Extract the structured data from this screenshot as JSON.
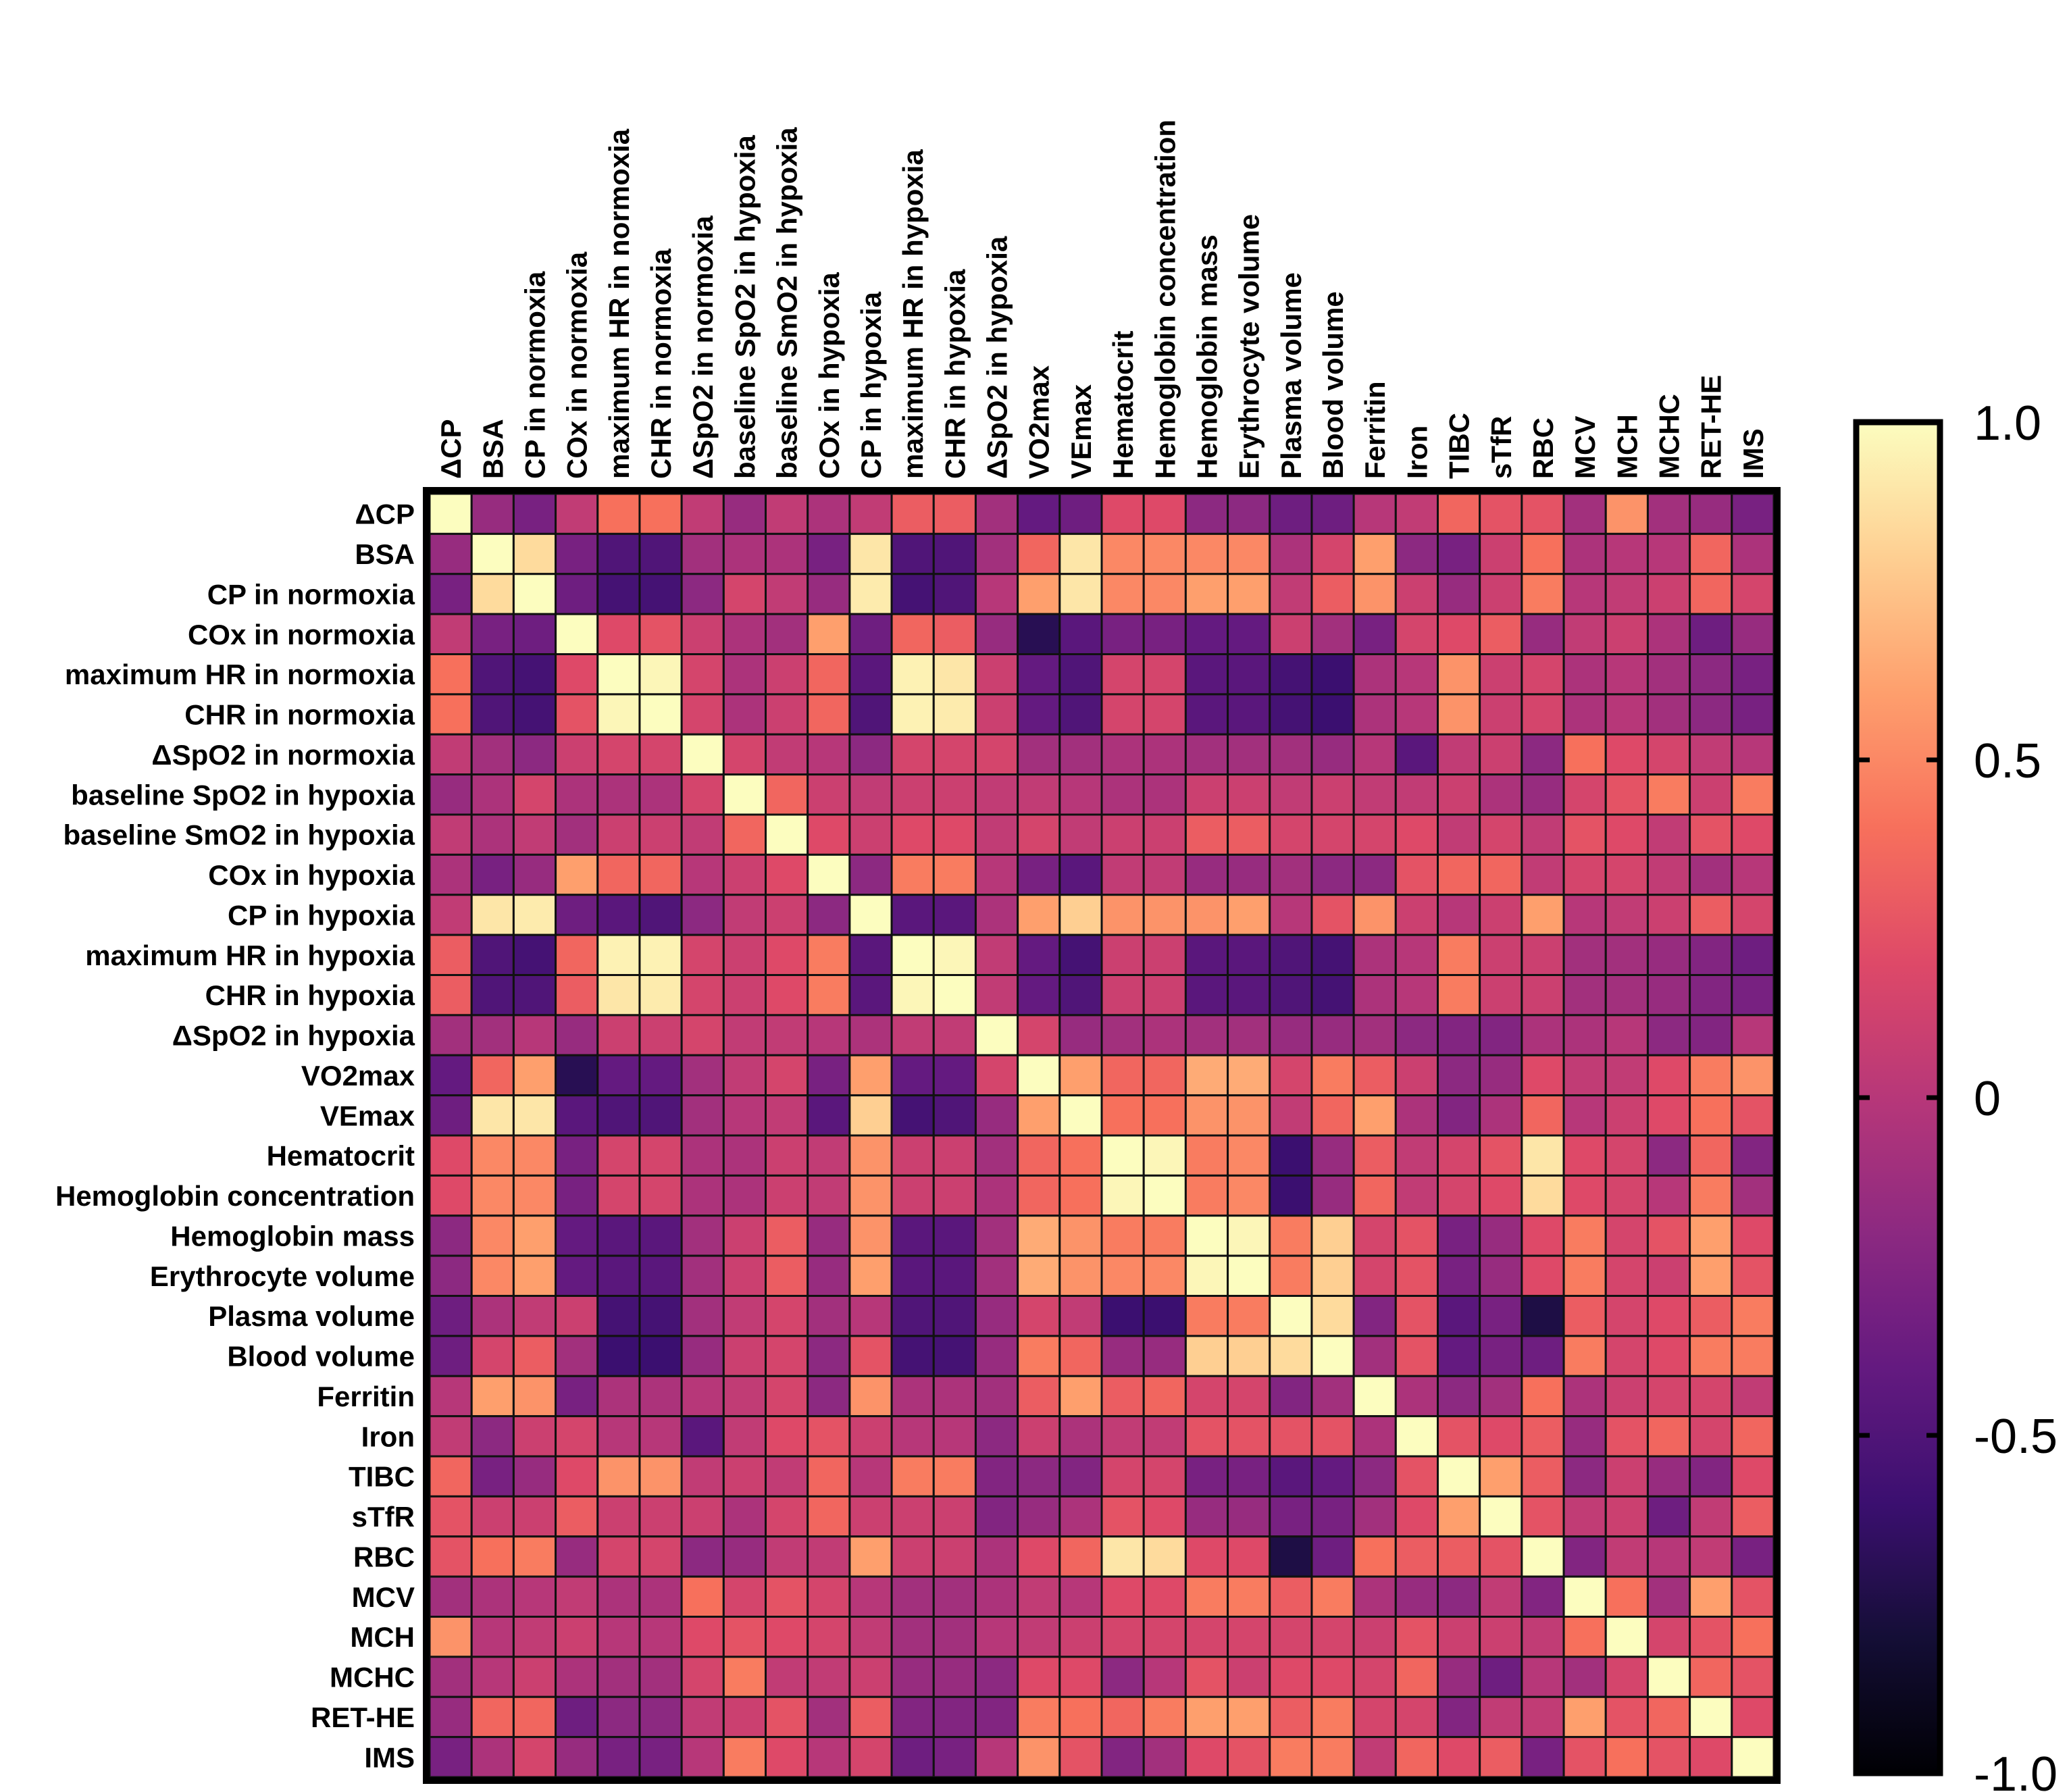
{
  "chart_data": {
    "type": "heatmap",
    "title": "",
    "xlabel": "",
    "ylabel": "",
    "variables": [
      "ΔCP",
      "BSA",
      "CP in normoxia",
      "COx in normoxia",
      "maximum HR in normoxia",
      "CHR in normoxia",
      "ΔSpO2 in normoxia",
      "baseline SpO2 in hypoxia",
      "baseline SmO2 in hypoxia",
      "COx in hypoxia",
      "CP in hypoxia",
      "maximum HR in hypoxia",
      "CHR in hypoxia",
      "ΔSpO2 in hypoxia",
      "VO2max",
      "VEmax",
      "Hematocrit",
      "Hemoglobin concentration",
      "Hemoglobin mass",
      "Erythrocyte volume",
      "Plasma volume",
      "Blood volume",
      "Ferritin",
      "Iron",
      "TIBC",
      "sTfR",
      "RBC",
      "MCV",
      "MCH",
      "MCHC",
      "RET-HE",
      "IMS"
    ],
    "upper_triangle": [
      [
        1.0,
        -0.15,
        -0.3,
        0.05,
        0.4,
        0.4,
        0.05,
        -0.15,
        0.05,
        -0.05,
        0.05,
        0.3,
        0.3,
        -0.1,
        -0.4,
        -0.35,
        0.2,
        0.2,
        -0.2,
        -0.2,
        -0.35,
        -0.35,
        0.0,
        0.05,
        0.35,
        0.25,
        0.25,
        -0.1,
        0.55,
        -0.1,
        -0.15,
        -0.3
      ],
      [
        1.0,
        0.85,
        -0.3,
        -0.5,
        -0.5,
        -0.1,
        -0.05,
        -0.05,
        -0.3,
        0.9,
        -0.5,
        -0.5,
        -0.1,
        0.35,
        0.9,
        0.5,
        0.5,
        0.5,
        0.5,
        -0.05,
        0.15,
        0.6,
        -0.2,
        -0.3,
        0.1,
        0.4,
        -0.05,
        0.0,
        0.0,
        0.35,
        -0.05
      ],
      [
        1.0,
        -0.35,
        -0.55,
        -0.55,
        -0.2,
        0.15,
        0.05,
        -0.15,
        0.92,
        -0.55,
        -0.5,
        0.0,
        0.6,
        0.9,
        0.5,
        0.5,
        0.6,
        0.6,
        0.05,
        0.3,
        0.55,
        0.1,
        -0.15,
        0.1,
        0.45,
        0.0,
        0.05,
        0.1,
        0.35,
        0.15
      ],
      [
        1.0,
        0.2,
        0.25,
        0.1,
        -0.05,
        -0.1,
        0.6,
        -0.35,
        0.35,
        0.3,
        -0.15,
        -0.7,
        -0.45,
        -0.3,
        -0.3,
        -0.4,
        -0.4,
        0.1,
        -0.1,
        -0.3,
        0.15,
        0.2,
        0.3,
        -0.15,
        0.05,
        0.1,
        -0.05,
        -0.35,
        -0.15
      ],
      [
        1.0,
        0.97,
        0.15,
        -0.05,
        0.1,
        0.35,
        -0.45,
        0.95,
        0.9,
        0.1,
        -0.4,
        -0.5,
        0.15,
        0.15,
        -0.45,
        -0.45,
        -0.55,
        -0.6,
        -0.05,
        0.0,
        0.55,
        0.1,
        0.15,
        -0.05,
        0.0,
        -0.1,
        -0.2,
        -0.3
      ],
      [
        1.0,
        0.15,
        -0.05,
        0.1,
        0.35,
        -0.5,
        0.95,
        0.92,
        0.1,
        -0.4,
        -0.5,
        0.15,
        0.15,
        -0.45,
        -0.45,
        -0.55,
        -0.6,
        -0.05,
        0.0,
        0.55,
        0.1,
        0.15,
        -0.05,
        0.0,
        -0.1,
        -0.2,
        -0.3
      ],
      [
        1.0,
        0.15,
        0.05,
        0.0,
        -0.2,
        0.15,
        0.15,
        0.15,
        -0.1,
        -0.1,
        -0.05,
        -0.05,
        -0.1,
        -0.1,
        -0.1,
        -0.15,
        0.0,
        -0.45,
        0.05,
        0.1,
        -0.2,
        0.4,
        0.2,
        0.15,
        0.05,
        0.0
      ],
      [
        1.0,
        0.35,
        0.1,
        0.05,
        0.1,
        0.1,
        0.05,
        0.05,
        0.0,
        -0.05,
        -0.05,
        0.1,
        0.1,
        0.05,
        0.1,
        0.05,
        0.05,
        0.1,
        -0.05,
        -0.15,
        0.15,
        0.25,
        0.45,
        0.1,
        0.45
      ],
      [
        1.0,
        0.2,
        0.1,
        0.2,
        0.2,
        0.05,
        0.15,
        0.05,
        0.1,
        0.1,
        0.3,
        0.3,
        0.15,
        0.15,
        0.15,
        0.2,
        0.05,
        0.15,
        0.05,
        0.25,
        0.2,
        0.05,
        0.25,
        0.2
      ],
      [
        1.0,
        -0.2,
        0.45,
        0.45,
        0.0,
        -0.3,
        -0.45,
        0.05,
        0.05,
        -0.15,
        -0.15,
        -0.1,
        -0.2,
        -0.2,
        0.25,
        0.35,
        0.35,
        0.05,
        0.15,
        0.15,
        0.05,
        -0.1,
        0.0
      ],
      [
        1.0,
        -0.45,
        -0.45,
        -0.05,
        0.6,
        0.8,
        0.55,
        0.55,
        0.55,
        0.6,
        0.0,
        0.25,
        0.55,
        0.1,
        0.0,
        0.1,
        0.6,
        0.0,
        0.05,
        0.1,
        0.3,
        0.15
      ],
      [
        1.0,
        0.97,
        0.05,
        -0.4,
        -0.55,
        0.1,
        0.1,
        -0.45,
        -0.45,
        -0.5,
        -0.55,
        -0.05,
        0.0,
        0.45,
        0.1,
        0.1,
        -0.1,
        -0.1,
        -0.15,
        -0.25,
        -0.35
      ],
      [
        1.0,
        0.05,
        -0.4,
        -0.5,
        0.1,
        0.1,
        -0.45,
        -0.45,
        -0.5,
        -0.55,
        -0.05,
        0.0,
        0.45,
        0.1,
        0.1,
        -0.1,
        -0.1,
        -0.15,
        -0.25,
        -0.3
      ],
      [
        1.0,
        0.15,
        -0.15,
        -0.1,
        -0.05,
        -0.1,
        -0.1,
        -0.15,
        -0.15,
        -0.1,
        -0.2,
        -0.25,
        -0.25,
        -0.05,
        -0.05,
        0.0,
        -0.2,
        -0.25,
        0.0
      ],
      [
        1.0,
        0.6,
        0.35,
        0.35,
        0.65,
        0.65,
        0.15,
        0.45,
        0.3,
        0.1,
        -0.2,
        -0.15,
        0.2,
        0.05,
        0.05,
        0.2,
        0.45,
        0.55
      ],
      [
        1.0,
        0.4,
        0.4,
        0.55,
        0.55,
        0.05,
        0.35,
        0.6,
        -0.05,
        -0.25,
        -0.05,
        0.35,
        0.0,
        0.1,
        0.2,
        0.4,
        0.25
      ],
      [
        1.0,
        0.97,
        0.45,
        0.5,
        -0.6,
        -0.15,
        0.3,
        0.05,
        0.15,
        0.25,
        0.9,
        0.2,
        0.15,
        -0.2,
        0.35,
        -0.25
      ],
      [
        1.0,
        0.45,
        0.5,
        -0.6,
        -0.15,
        0.35,
        0.05,
        0.15,
        0.2,
        0.85,
        0.2,
        0.15,
        0.0,
        0.45,
        -0.1
      ],
      [
        1.0,
        0.97,
        0.45,
        0.8,
        0.15,
        0.25,
        -0.3,
        -0.15,
        0.2,
        0.45,
        0.15,
        0.25,
        0.6,
        0.2
      ],
      [
        1.0,
        0.45,
        0.8,
        0.15,
        0.25,
        -0.3,
        -0.15,
        0.2,
        0.45,
        0.15,
        0.1,
        0.6,
        0.25
      ],
      [
        1.0,
        0.85,
        -0.25,
        0.25,
        -0.45,
        -0.3,
        -0.75,
        0.3,
        0.15,
        0.2,
        0.3,
        0.45
      ],
      [
        1.0,
        -0.1,
        0.25,
        -0.4,
        -0.3,
        -0.35,
        0.45,
        0.15,
        0.2,
        0.45,
        0.45
      ],
      [
        1.0,
        -0.05,
        -0.2,
        -0.1,
        0.4,
        -0.05,
        0.1,
        0.15,
        0.15,
        0.05
      ],
      [
        1.0,
        0.25,
        0.2,
        0.3,
        -0.15,
        0.25,
        0.35,
        0.15,
        0.35
      ],
      [
        1.0,
        0.6,
        0.3,
        -0.2,
        0.1,
        -0.15,
        -0.25,
        0.2
      ],
      [
        1.0,
        0.25,
        0.05,
        0.1,
        -0.35,
        0.05,
        0.3
      ],
      [
        1.0,
        -0.25,
        0.05,
        0.0,
        0.05,
        -0.3
      ],
      [
        1.0,
        0.4,
        -0.1,
        0.6,
        0.25
      ],
      [
        1.0,
        0.15,
        0.25,
        0.4
      ],
      [
        1.0,
        0.35,
        0.25
      ],
      [
        1.0,
        0.2
      ],
      [
        1.0
      ]
    ],
    "colorbar": {
      "colormap": "magma",
      "min": -1.0,
      "max": 1.0,
      "ticks": [
        1.0,
        0.5,
        0,
        -0.5,
        -1.0
      ],
      "tick_labels": [
        "1.0",
        "0.5",
        "0",
        "-0.5",
        "-1.0"
      ]
    },
    "legend_position": "right",
    "grid": true
  }
}
